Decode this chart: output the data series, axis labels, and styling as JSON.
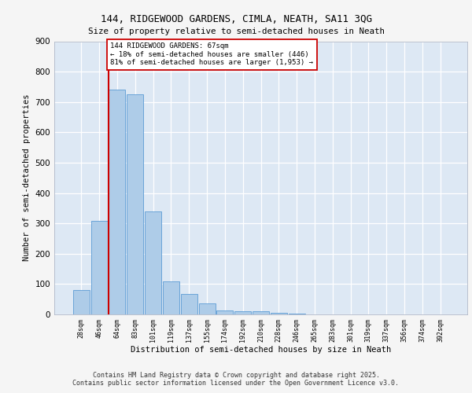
{
  "title1": "144, RIDGEWOOD GARDENS, CIMLA, NEATH, SA11 3QG",
  "title2": "Size of property relative to semi-detached houses in Neath",
  "xlabel": "Distribution of semi-detached houses by size in Neath",
  "ylabel": "Number of semi-detached properties",
  "categories": [
    "28sqm",
    "46sqm",
    "64sqm",
    "83sqm",
    "101sqm",
    "119sqm",
    "137sqm",
    "155sqm",
    "174sqm",
    "192sqm",
    "210sqm",
    "228sqm",
    "246sqm",
    "265sqm",
    "283sqm",
    "301sqm",
    "319sqm",
    "337sqm",
    "356sqm",
    "374sqm",
    "392sqm"
  ],
  "values": [
    80,
    308,
    740,
    726,
    340,
    108,
    68,
    35,
    13,
    10,
    10,
    5,
    2,
    0,
    0,
    0,
    0,
    0,
    0,
    0,
    0
  ],
  "bar_color": "#aecce8",
  "bar_edge_color": "#5b9bd5",
  "property_line_color": "#cc0000",
  "annotation_text": "144 RIDGEWOOD GARDENS: 67sqm\n← 18% of semi-detached houses are smaller (446)\n81% of semi-detached houses are larger (1,953) →",
  "annotation_box_color": "#ffffff",
  "annotation_box_edge_color": "#cc0000",
  "ylim": [
    0,
    900
  ],
  "yticks": [
    0,
    100,
    200,
    300,
    400,
    500,
    600,
    700,
    800,
    900
  ],
  "background_color": "#dde8f4",
  "grid_color": "#ffffff",
  "fig_background": "#f5f5f5",
  "footer": "Contains HM Land Registry data © Crown copyright and database right 2025.\nContains public sector information licensed under the Open Government Licence v3.0."
}
